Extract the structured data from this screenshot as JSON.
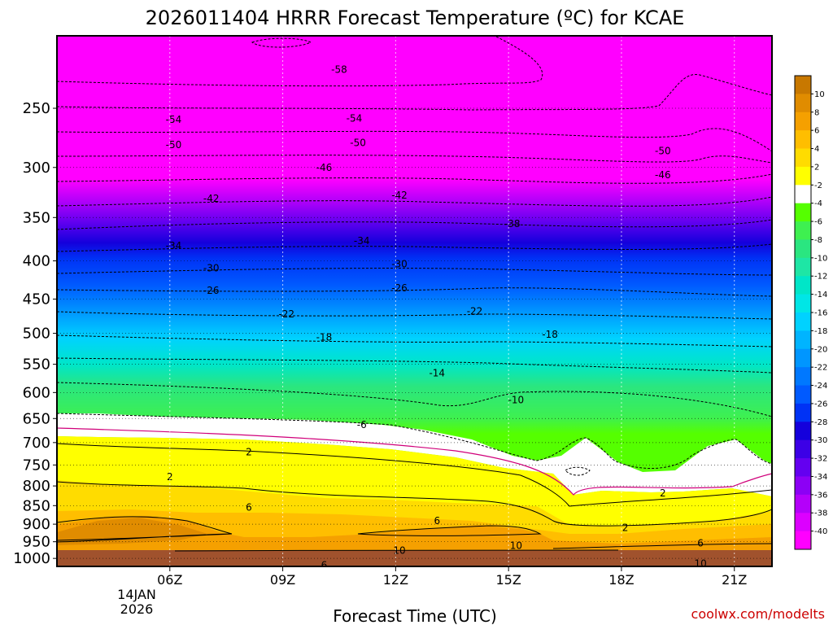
{
  "chart_data": {
    "type": "heatmap",
    "title": "2026011404 HRRR Forecast Temperature (ºC) for KCAE",
    "xlabel": "Forecast Time (UTC)",
    "ylabel": "",
    "credit": "coolwx.com/modelts",
    "x_ticks": [
      "06Z",
      "09Z",
      "12Z",
      "15Z",
      "18Z",
      "21Z"
    ],
    "x_tick_hours": [
      6,
      9,
      12,
      15,
      18,
      21
    ],
    "x_date_line1": "14JAN",
    "x_date_line2": "2026",
    "xlim": [
      3.0,
      22.0
    ],
    "y_ticks": [
      "250",
      "300",
      "350",
      "400",
      "450",
      "500",
      "550",
      "600",
      "650",
      "700",
      "750",
      "800",
      "850",
      "900",
      "950",
      "1000"
    ],
    "ylim_hpa": [
      1025,
      200
    ],
    "colorbar": {
      "labels": [
        "10",
        "8",
        "6",
        "4",
        "2",
        "-2",
        "-4",
        "-6",
        "-8",
        "-10",
        "-12",
        "-14",
        "-16",
        "-18",
        "-20",
        "-22",
        "-24",
        "-26",
        "-28",
        "-30",
        "-32",
        "-34",
        "-36",
        "-38",
        "-40"
      ],
      "colors": [
        "#c87800",
        "#e08c00",
        "#f5a000",
        "#ffbe00",
        "#ffdc00",
        "#ffff00",
        "#ffffff",
        "#55ff00",
        "#3ef050",
        "#2ae680",
        "#1ee6a5",
        "#00e6c8",
        "#00e6e6",
        "#00d2ff",
        "#00b4ff",
        "#0096ff",
        "#0078ff",
        "#005aff",
        "#0032f5",
        "#1400dc",
        "#3c00e6",
        "#6400f0",
        "#8c00f5",
        "#b400fa",
        "#dc00ff",
        "#ff00ff"
      ]
    },
    "contour_labels": [
      {
        "value": "-58",
        "hour": 10.5,
        "hpa": 222
      },
      {
        "value": "-54",
        "hour": 6.1,
        "hpa": 259
      },
      {
        "value": "-54",
        "hour": 10.9,
        "hpa": 258
      },
      {
        "value": "-50",
        "hour": 6.1,
        "hpa": 280
      },
      {
        "value": "-50",
        "hour": 11.0,
        "hpa": 278
      },
      {
        "value": "-50",
        "hour": 19.1,
        "hpa": 285
      },
      {
        "value": "-46",
        "hour": 10.1,
        "hpa": 300
      },
      {
        "value": "-46",
        "hour": 19.1,
        "hpa": 307
      },
      {
        "value": "-42",
        "hour": 7.1,
        "hpa": 330
      },
      {
        "value": "-42",
        "hour": 12.1,
        "hpa": 327
      },
      {
        "value": "-38",
        "hour": 15.1,
        "hpa": 357
      },
      {
        "value": "-34",
        "hour": 6.1,
        "hpa": 382
      },
      {
        "value": "-34",
        "hour": 11.1,
        "hpa": 376
      },
      {
        "value": "-30",
        "hour": 7.1,
        "hpa": 409
      },
      {
        "value": "-30",
        "hour": 12.1,
        "hpa": 404
      },
      {
        "value": "-26",
        "hour": 7.1,
        "hpa": 438
      },
      {
        "value": "-26",
        "hour": 12.1,
        "hpa": 435
      },
      {
        "value": "-22",
        "hour": 9.1,
        "hpa": 471
      },
      {
        "value": "-22",
        "hour": 14.1,
        "hpa": 467
      },
      {
        "value": "-18",
        "hour": 10.1,
        "hpa": 506
      },
      {
        "value": "-18",
        "hour": 16.1,
        "hpa": 502
      },
      {
        "value": "-14",
        "hour": 13.1,
        "hpa": 565
      },
      {
        "value": "-10",
        "hour": 15.2,
        "hpa": 614
      },
      {
        "value": "-6",
        "hour": 11.1,
        "hpa": 663
      },
      {
        "value": "2",
        "hour": 8.1,
        "hpa": 721
      },
      {
        "value": "2",
        "hour": 6.0,
        "hpa": 778
      },
      {
        "value": "2",
        "hour": 19.1,
        "hpa": 818
      },
      {
        "value": "2",
        "hour": 18.1,
        "hpa": 910
      },
      {
        "value": "6",
        "hour": 8.1,
        "hpa": 855
      },
      {
        "value": "6",
        "hour": 13.1,
        "hpa": 891
      },
      {
        "value": "6",
        "hour": 20.1,
        "hpa": 954
      },
      {
        "value": "6",
        "hour": 10.1,
        "hpa": 1021
      },
      {
        "value": "10",
        "hour": 15.2,
        "hpa": 961
      },
      {
        "value": "10",
        "hour": 12.1,
        "hpa": 976
      },
      {
        "value": "10",
        "hour": 20.1,
        "hpa": 1016
      }
    ]
  }
}
